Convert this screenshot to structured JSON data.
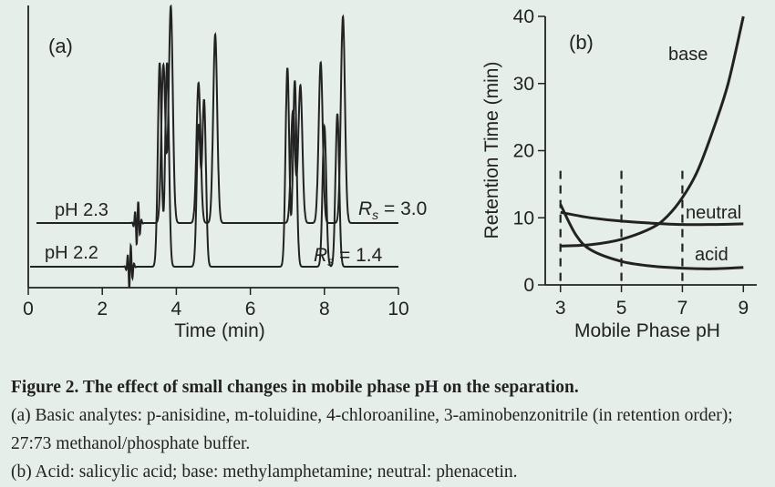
{
  "chart_data": [
    {
      "type": "line",
      "panel_label": "(a)",
      "xlabel": "Time (min)",
      "xlim": [
        0,
        10
      ],
      "x_ticks": [
        "0",
        "2",
        "4",
        "6",
        "8",
        "10"
      ],
      "series": [
        {
          "name": "pH 2.3",
          "resolution_label": "Rs = 3.0",
          "peaks": [
            {
              "t": 3.65,
              "height": 0.62
            },
            {
              "t": 3.85,
              "height": 0.85
            },
            {
              "t": 4.6,
              "height": 0.55
            },
            {
              "t": 5.05,
              "height": 0.74
            },
            {
              "t": 7.15,
              "height": 0.44
            },
            {
              "t": 7.35,
              "height": 0.54
            },
            {
              "t": 7.9,
              "height": 0.63
            },
            {
              "t": 8.5,
              "height": 0.81
            }
          ]
        },
        {
          "name": "pH 2.2",
          "resolution_label": "Rs = 1.4",
          "peaks": [
            {
              "t": 3.55,
              "height": 0.8
            },
            {
              "t": 3.75,
              "height": 0.8
            },
            {
              "t": 4.6,
              "height": 0.55
            },
            {
              "t": 4.75,
              "height": 0.65
            },
            {
              "t": 7.0,
              "height": 0.78
            },
            {
              "t": 7.2,
              "height": 0.73
            },
            {
              "t": 8.0,
              "height": 0.55
            },
            {
              "t": 8.35,
              "height": 0.6
            }
          ]
        }
      ]
    },
    {
      "type": "line",
      "panel_label": "(b)",
      "xlabel": "Mobile Phase pH",
      "ylabel": "Retention Time (min)",
      "xlim": [
        2.5,
        9.5
      ],
      "ylim": [
        0,
        40
      ],
      "x_ticks": [
        "3",
        "5",
        "7",
        "9"
      ],
      "y_ticks": [
        "0",
        "10",
        "20",
        "30",
        "40"
      ],
      "reference_lines_x": [
        3,
        5,
        7
      ],
      "series": [
        {
          "name": "base",
          "x": [
            3,
            4,
            5,
            6,
            6.5,
            7,
            7.5,
            8,
            8.5,
            9
          ],
          "y": [
            5.8,
            6.0,
            6.8,
            8.5,
            10.2,
            13,
            17,
            23,
            30,
            40
          ]
        },
        {
          "name": "neutral",
          "x": [
            3,
            4,
            5,
            6,
            7,
            8,
            9
          ],
          "y": [
            10.8,
            10.0,
            9.5,
            9.2,
            9.0,
            9.0,
            9.1
          ]
        },
        {
          "name": "acid",
          "x": [
            3,
            3.5,
            4,
            5,
            6,
            7,
            8,
            9
          ],
          "y": [
            12,
            7.5,
            5.2,
            3.5,
            2.8,
            2.5,
            2.4,
            2.6
          ]
        }
      ]
    }
  ],
  "caption": {
    "title": "Figure 2. The effect of small changes in mobile phase pH on the separation.",
    "line_a": "(a) Basic analytes: p-anisidine, m-toluidine, 4-chloroaniline, 3-aminobenzonitrile (in retention order); 27:73 methanol/phosphate buffer.",
    "line_b": "(b) Acid: salicylic acid; base: methylamphetamine; neutral: phenacetin."
  }
}
